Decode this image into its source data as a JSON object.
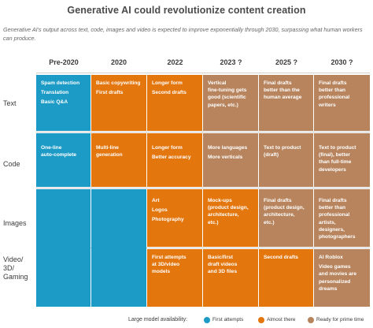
{
  "title": "Generative AI could revolutionize content creation",
  "subtitle": "Generative AI's output across text, code, images and video is expected to improve exponentially through 2030, surpassing what human workers can produce.",
  "columns": [
    "Pre-2020",
    "2020",
    "2022",
    "2023 ?",
    "2025 ?",
    "2030 ?"
  ],
  "rows": [
    "Text",
    "Code",
    "Images",
    "Video/\n3D/\nGaming"
  ],
  "cells": {
    "text_pre2020": [
      "Spam detection",
      "Translation",
      "Basic Q&A"
    ],
    "text_2020": [
      "Basic copywriting",
      "First drafts"
    ],
    "text_2022": [
      "Longer form",
      "Second drafts"
    ],
    "text_2023": [
      "Vertical",
      "fine-tuning gets",
      "good (scientific",
      "papers, etc.)"
    ],
    "text_2025": [
      "Final drafts",
      "better than the",
      "human average"
    ],
    "text_2030": [
      "Final drafts",
      "better than",
      "professional",
      "writers"
    ],
    "code_pre2020": [
      "One-line",
      "auto-complete"
    ],
    "code_2020": [
      "Multi-line",
      "generation"
    ],
    "code_2022": [
      "Longer form",
      "Better accuracy"
    ],
    "code_2023": [
      "More languages",
      "More verticals"
    ],
    "code_2025": [
      "Text to product",
      "(draft)"
    ],
    "code_2030": [
      "Text to product",
      "(final), better",
      "than full-time",
      "developers"
    ],
    "images_2022": [
      "Art",
      "Logos",
      "Photography"
    ],
    "images_2023": [
      "Mock-ups",
      "(product design,",
      "architecture,",
      "etc.)"
    ],
    "images_2025": [
      "Final drafts",
      "(product design,",
      "architecture,",
      "etc.)"
    ],
    "images_2030": [
      "Final drafts",
      "better than",
      "professional",
      "artists,",
      "designers,",
      "photographers"
    ],
    "video_2022": [
      "First attempts",
      "at 3D/video",
      "models"
    ],
    "video_2023": [
      "Basic/first",
      "draft videos",
      "and 3D files"
    ],
    "video_2025": [
      "Second drafts"
    ],
    "video_2030a": [
      "AI Roblox"
    ],
    "video_2030b": [
      "Video games",
      "and movies are",
      "personalized",
      "dreams"
    ]
  },
  "legend": {
    "label": "Large model availability:",
    "items": [
      {
        "label": "First attempts",
        "color": "#1d9bc7"
      },
      {
        "label": "Almost there",
        "color": "#e3760d"
      },
      {
        "label": "Ready for prime time",
        "color": "#b7845d"
      }
    ]
  },
  "colors": {
    "first_attempts": "#1d9bc7",
    "almost_there": "#e3760d",
    "ready": "#b7845d"
  }
}
